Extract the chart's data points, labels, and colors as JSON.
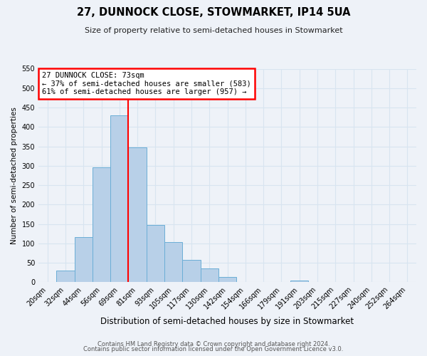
{
  "title": "27, DUNNOCK CLOSE, STOWMARKET, IP14 5UA",
  "subtitle": "Size of property relative to semi-detached houses in Stowmarket",
  "xlabel": "Distribution of semi-detached houses by size in Stowmarket",
  "ylabel": "Number of semi-detached properties",
  "footer1": "Contains HM Land Registry data © Crown copyright and database right 2024.",
  "footer2": "Contains public sector information licensed under the Open Government Licence v3.0.",
  "bin_labels": [
    "20sqm",
    "32sqm",
    "44sqm",
    "56sqm",
    "69sqm",
    "81sqm",
    "93sqm",
    "105sqm",
    "117sqm",
    "130sqm",
    "142sqm",
    "154sqm",
    "166sqm",
    "179sqm",
    "191sqm",
    "203sqm",
    "215sqm",
    "227sqm",
    "240sqm",
    "252sqm",
    "264sqm"
  ],
  "bar_heights": [
    0,
    30,
    117,
    295,
    430,
    348,
    147,
    104,
    57,
    35,
    14,
    0,
    0,
    0,
    5,
    0,
    0,
    0,
    0,
    0,
    0
  ],
  "bar_color": "#b8d0e8",
  "bar_edge_color": "#6baed6",
  "ylim": [
    0,
    550
  ],
  "yticks": [
    0,
    50,
    100,
    150,
    200,
    250,
    300,
    350,
    400,
    450,
    500,
    550
  ],
  "property_label": "27 DUNNOCK CLOSE: 73sqm",
  "pct_smaller": 37,
  "pct_larger": 61,
  "count_smaller": 583,
  "count_larger": 957,
  "vline_x": 4.5,
  "background_color": "#eef2f8",
  "grid_color": "#d8e4f0",
  "title_fontsize": 10.5,
  "subtitle_fontsize": 8.0,
  "ylabel_fontsize": 7.5,
  "xlabel_fontsize": 8.5,
  "tick_fontsize": 7,
  "annot_fontsize": 7.5,
  "footer_fontsize": 6.0
}
